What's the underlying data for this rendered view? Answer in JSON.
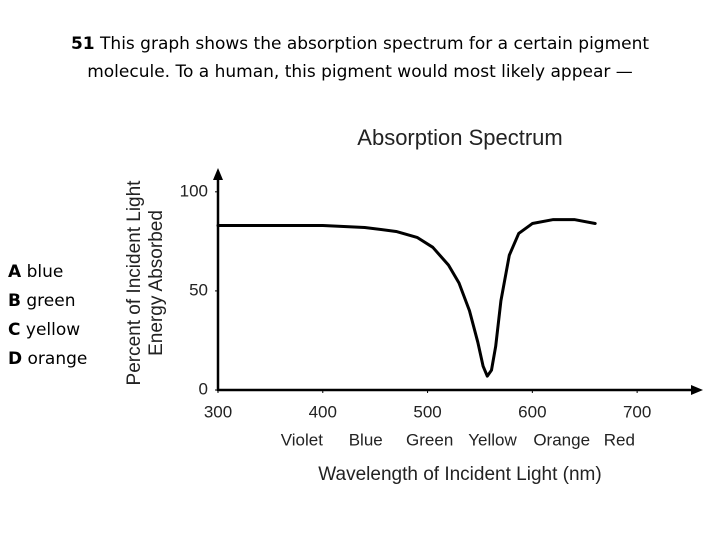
{
  "question": {
    "number": "51",
    "text": "This graph shows the absorption spectrum for a certain pigment molecule. To a human, this pigment would most likely appear —",
    "choices": [
      {
        "letter": "A",
        "text": "blue"
      },
      {
        "letter": "B",
        "text": "green"
      },
      {
        "letter": "C",
        "text": "yellow"
      },
      {
        "letter": "D",
        "text": "orange"
      }
    ]
  },
  "chart_data": {
    "type": "line",
    "title": "Absorption Spectrum",
    "y_label_lines": [
      "Percent of Incident Light",
      "Energy Absorbed"
    ],
    "x_label": "Wavelength of Incident Light (nm)",
    "x": [
      300,
      350,
      400,
      440,
      470,
      490,
      505,
      520,
      530,
      540,
      548,
      553,
      557,
      561,
      565,
      570,
      578,
      587,
      600,
      620,
      640,
      660
    ],
    "values": [
      83,
      83,
      83,
      82,
      80,
      77,
      72,
      63,
      54,
      40,
      24,
      12,
      7,
      10,
      22,
      45,
      68,
      79,
      84,
      86,
      86,
      84
    ],
    "color": "#000000",
    "xlim": [
      300,
      760
    ],
    "ylim": [
      0,
      110
    ],
    "xticks": [
      300,
      400,
      500,
      600,
      700
    ],
    "yticks": [
      0,
      50,
      100
    ],
    "color_labels": [
      {
        "label": "Violet",
        "x": 380
      },
      {
        "label": "Blue",
        "x": 441
      },
      {
        "label": "Green",
        "x": 502
      },
      {
        "label": "Yellow",
        "x": 562
      },
      {
        "label": "Orange",
        "x": 628
      },
      {
        "label": "Red",
        "x": 683
      }
    ]
  }
}
